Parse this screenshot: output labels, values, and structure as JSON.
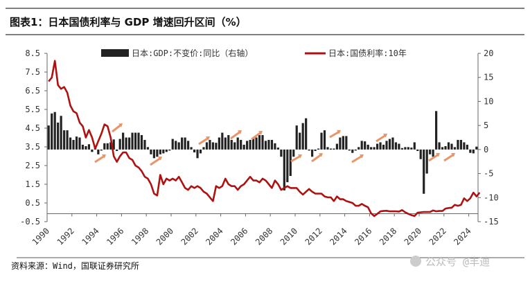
{
  "header": {
    "title": "图表1：日本国债利率与 GDP 增速回升区间（%）"
  },
  "footer": {
    "source": "资料来源：Wind，国联证券研究所",
    "watermark": "公众号 @丰迪"
  },
  "colors": {
    "gdp_bar": "#222222",
    "yield_line": "#b01010",
    "arrow": "#e8956a",
    "rule": "#555555"
  },
  "chart_data": {
    "type": "bar+line",
    "title": "图表1：日本国债利率与 GDP 增速回升区间（%）",
    "legend_position": "top",
    "grid": false,
    "x_ticks": [
      "1990",
      "1992",
      "1994",
      "1996",
      "1998",
      "2000",
      "2002",
      "2004",
      "2006",
      "2008",
      "2010",
      "2012",
      "2014",
      "2016",
      "2018",
      "2020",
      "2022",
      "2024"
    ],
    "y_left": {
      "range": [
        -0.5,
        8.5
      ],
      "ticks": [
        "8.5",
        "7.5",
        "6.5",
        "5.5",
        "4.5",
        "3.5",
        "2.5",
        "1.5",
        "0.5",
        "-0.5"
      ]
    },
    "y_right": {
      "range": [
        -15,
        20
      ],
      "ticks": [
        "20",
        "15",
        "10",
        "5",
        "0",
        "-5",
        "-10",
        "-15"
      ]
    },
    "start": "1990Q1",
    "frequency": "quarterly",
    "series": [
      {
        "name": "日本:GDP:不变价:同比（右轴）",
        "type": "bar",
        "axis": "right",
        "values": [
          5.0,
          7.5,
          7.8,
          5.6,
          7.0,
          4.0,
          4.0,
          2.5,
          2.0,
          2.7,
          2.5,
          1.0,
          0.7,
          1.1,
          -0.5,
          0.4,
          -1.0,
          -0.2,
          1.3,
          1.3,
          1.5,
          2.1,
          -0.3,
          2.2,
          3.5,
          2.5,
          2.5,
          3.5,
          3.5,
          3.5,
          3.0,
          2.0,
          0.5,
          -1.0,
          -1.8,
          -1.5,
          -1.0,
          -0.8,
          -0.5,
          0.0,
          2.2,
          1.8,
          1.5,
          2.5,
          2.5,
          1.8,
          0.5,
          -0.6,
          -1.8,
          -0.8,
          0.5,
          1.5,
          2.0,
          1.5,
          1.4,
          2.5,
          3.5,
          2.5,
          3.0,
          2.0,
          1.5,
          2.5,
          2.0,
          1.0,
          1.8,
          2.0,
          2.5,
          2.5,
          3.0,
          3.0,
          1.8,
          2.0,
          2.0,
          1.3,
          0.4,
          -1.5,
          -8.5,
          -6.8,
          -5.5,
          -1.5,
          5.0,
          3.5,
          5.5,
          6.5,
          0.0,
          -1.5,
          -0.3,
          0.2,
          3.5,
          4.0,
          0.5,
          0.2,
          0.2,
          1.2,
          2.5,
          2.8,
          2.8,
          0.0,
          -0.7,
          0.0,
          0.5,
          1.8,
          1.7,
          1.0,
          0.5,
          0.5,
          1.2,
          1.5,
          1.0,
          1.8,
          2.2,
          2.5,
          1.5,
          1.2,
          0.3,
          0.5,
          0.5,
          0.4,
          1.5,
          -0.3,
          -2.0,
          -9.2,
          -5.0,
          -1.0,
          -1.5,
          8.0,
          1.5,
          0.5,
          0.7,
          1.5,
          1.2,
          0.5,
          2.0,
          2.0,
          1.5,
          1.0,
          -0.7,
          -0.8,
          0.6
        ]
      },
      {
        "name": "日本:国债利率:10年",
        "type": "line",
        "axis": "left",
        "values": [
          7.0,
          7.2,
          8.1,
          6.8,
          6.6,
          6.7,
          6.4,
          5.7,
          5.4,
          5.3,
          4.8,
          4.6,
          4.0,
          4.4,
          4.0,
          3.4,
          3.8,
          4.2,
          4.7,
          4.6,
          4.0,
          3.0,
          2.7,
          3.0,
          3.2,
          3.2,
          2.9,
          2.8,
          2.5,
          2.4,
          2.2,
          1.9,
          1.8,
          1.5,
          1.0,
          0.9,
          2.0,
          1.5,
          1.8,
          1.7,
          1.8,
          1.7,
          1.9,
          1.6,
          1.3,
          1.2,
          1.4,
          1.3,
          1.4,
          1.3,
          1.1,
          1.0,
          0.8,
          0.6,
          1.4,
          1.3,
          1.4,
          1.8,
          1.5,
          1.4,
          1.4,
          1.2,
          1.4,
          1.5,
          1.7,
          1.9,
          1.7,
          1.7,
          1.6,
          1.8,
          1.7,
          1.5,
          1.3,
          1.7,
          1.5,
          1.2,
          1.3,
          1.4,
          1.3,
          1.3,
          1.3,
          1.1,
          0.95,
          1.1,
          1.25,
          1.1,
          1.0,
          1.0,
          1.0,
          0.85,
          0.8,
          0.8,
          0.6,
          0.85,
          0.7,
          0.7,
          0.6,
          0.55,
          0.5,
          0.35,
          0.35,
          0.45,
          0.35,
          0.27,
          -0.05,
          -0.2,
          -0.08,
          0.05,
          0.07,
          0.08,
          0.05,
          0.05,
          0.05,
          0.04,
          0.12,
          0.0,
          -0.08,
          -0.15,
          -0.2,
          -0.02,
          0.0,
          0.02,
          0.02,
          0.02,
          0.1,
          0.05,
          0.07,
          0.07,
          0.2,
          0.23,
          0.25,
          0.4,
          0.35,
          0.4,
          0.75,
          0.6,
          0.75,
          1.05,
          0.85,
          1.05
        ]
      }
    ]
  }
}
